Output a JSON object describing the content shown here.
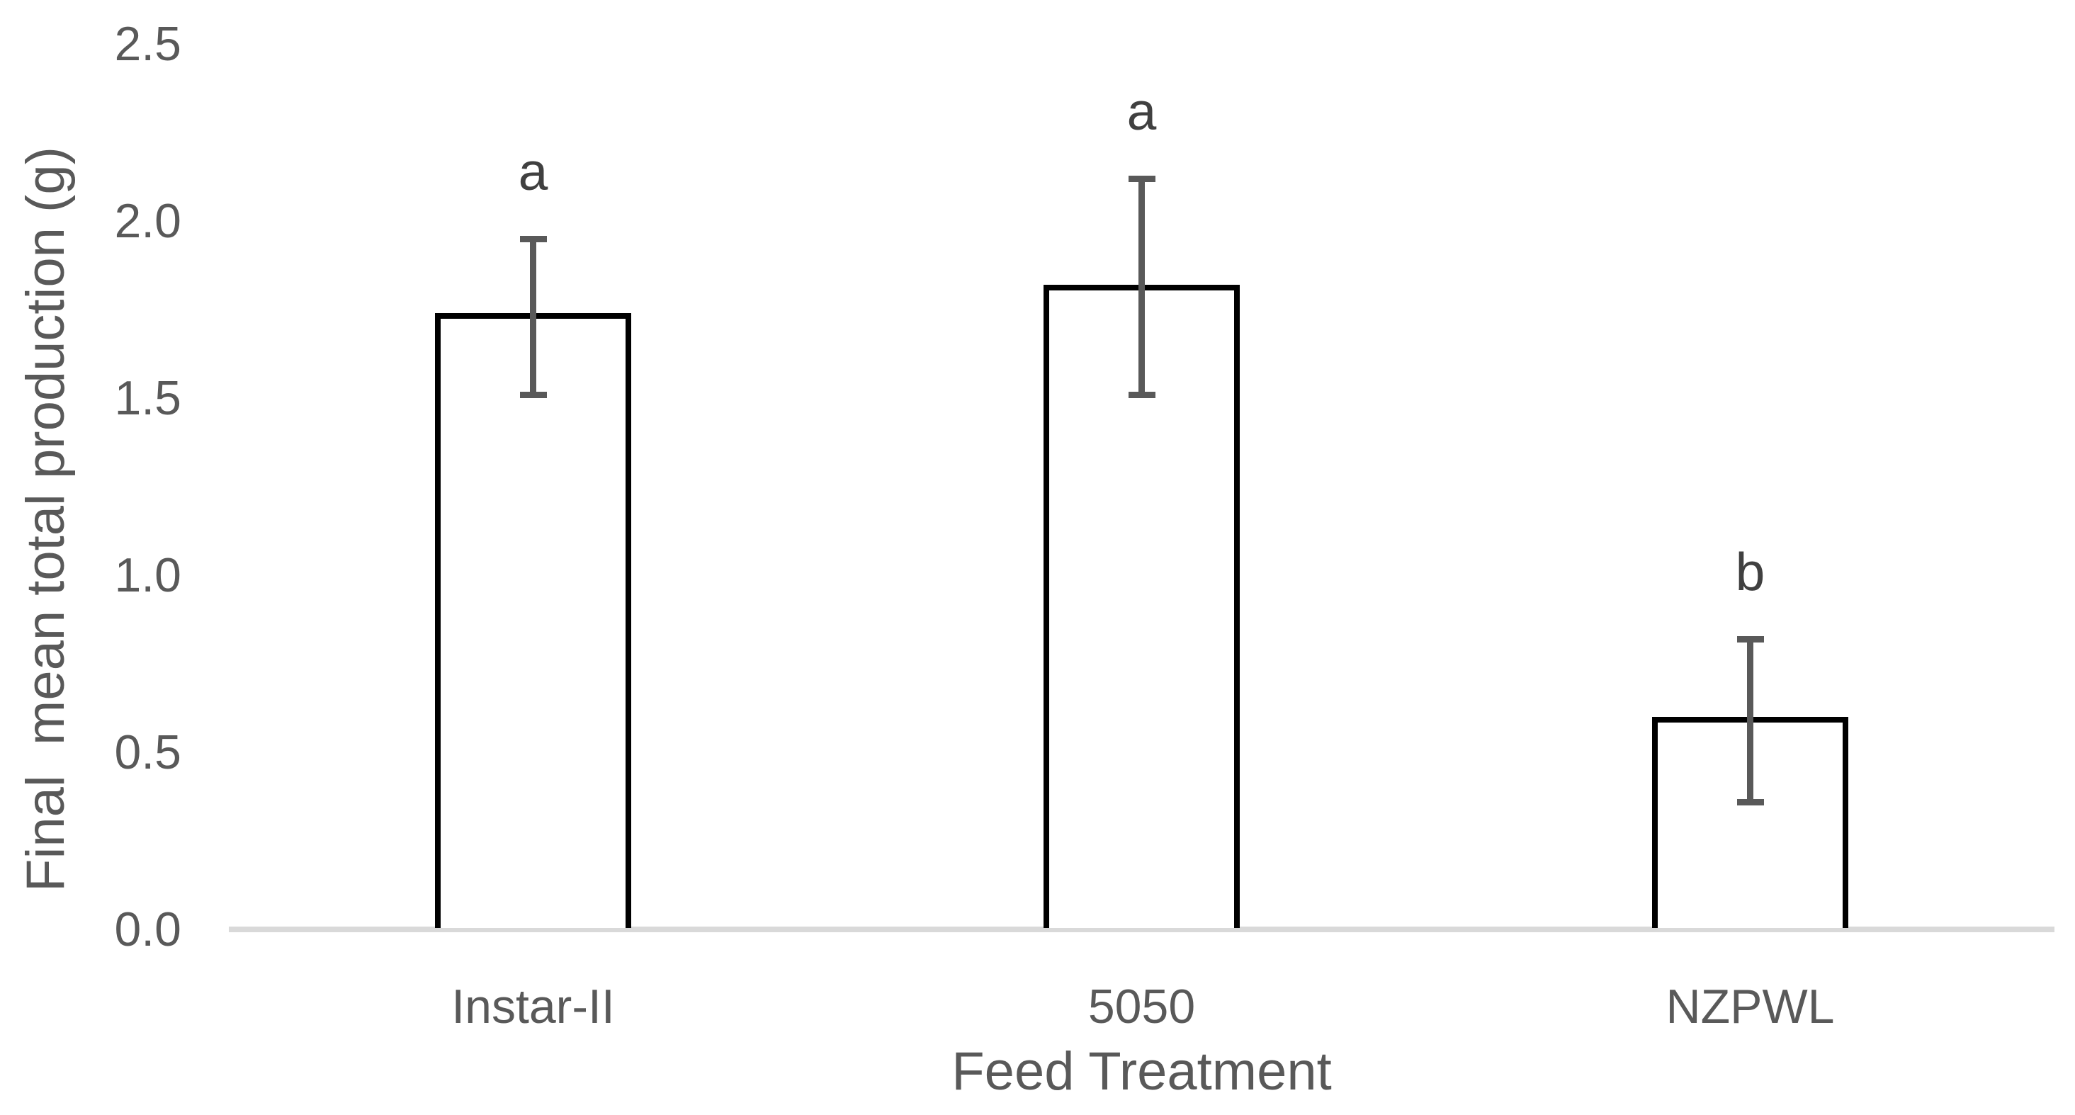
{
  "chart_data": {
    "type": "bar",
    "title": "",
    "xlabel": "Feed Treatment",
    "ylabel": "Final  mean total production (g)",
    "categories": [
      "Instar-II",
      "5050",
      "NZPWL"
    ],
    "values": [
      1.74,
      1.82,
      0.6
    ],
    "error_upper": [
      1.95,
      2.12,
      0.82
    ],
    "error_lower": [
      1.51,
      1.51,
      0.36
    ],
    "sig_letters": [
      "a",
      "a",
      "b"
    ],
    "ytick_labels": [
      "2.5",
      "2.0",
      "1.5",
      "1.0",
      "0.5",
      "0.0"
    ],
    "ytick_values": [
      2.5,
      2.0,
      1.5,
      1.0,
      0.5,
      0.0
    ],
    "ylim": [
      0.0,
      2.5
    ],
    "grid": false,
    "legend_position": "none",
    "bar_fill_color": "#ffffff",
    "bar_border_color": "#000000",
    "error_bar_color": "#595959",
    "axis_line_color": "#d9d9d9",
    "text_color": "#595959"
  }
}
